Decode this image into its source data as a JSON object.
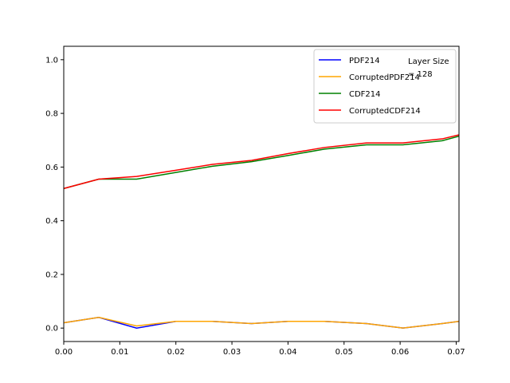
{
  "chart_data": {
    "type": "line",
    "title": "",
    "xlabel": "",
    "ylabel": "",
    "xlim": [
      0,
      0.0705
    ],
    "ylim": [
      -0.05,
      1.05
    ],
    "xticks": [
      "0.00",
      "0.01",
      "0.02",
      "0.03",
      "0.04",
      "0.05",
      "0.06",
      "0.07"
    ],
    "yticks": [
      "0.0",
      "0.2",
      "0.4",
      "0.6",
      "0.8",
      "1.0"
    ],
    "grid": false,
    "legend_position": "top-right",
    "annotation": [
      "Layer Size",
      "= 128"
    ],
    "x": [
      0,
      0.00625,
      0.013,
      0.02,
      0.0265,
      0.0335,
      0.04,
      0.0465,
      0.054,
      0.0605,
      0.0675,
      0.0705
    ],
    "series": [
      {
        "name": "PDF214",
        "color": "#0000ff",
        "values": [
          0.02,
          0.04,
          0.0,
          0.025,
          0.025,
          0.017,
          0.025,
          0.025,
          0.017,
          0.0,
          0.017,
          0.025
        ]
      },
      {
        "name": "CorruptedPDF214",
        "color": "#ffa500",
        "values": [
          0.02,
          0.04,
          0.008,
          0.025,
          0.025,
          0.017,
          0.025,
          0.025,
          0.017,
          0.0,
          0.017,
          0.025
        ]
      },
      {
        "name": "CDF214",
        "color": "#008000",
        "values": [
          0.52,
          0.555,
          0.555,
          0.58,
          0.603,
          0.62,
          0.643,
          0.667,
          0.683,
          0.683,
          0.698,
          0.715
        ]
      },
      {
        "name": "CorruptedCDF214",
        "color": "#ff0000",
        "values": [
          0.52,
          0.555,
          0.565,
          0.588,
          0.61,
          0.625,
          0.65,
          0.673,
          0.69,
          0.69,
          0.705,
          0.72
        ]
      }
    ]
  }
}
